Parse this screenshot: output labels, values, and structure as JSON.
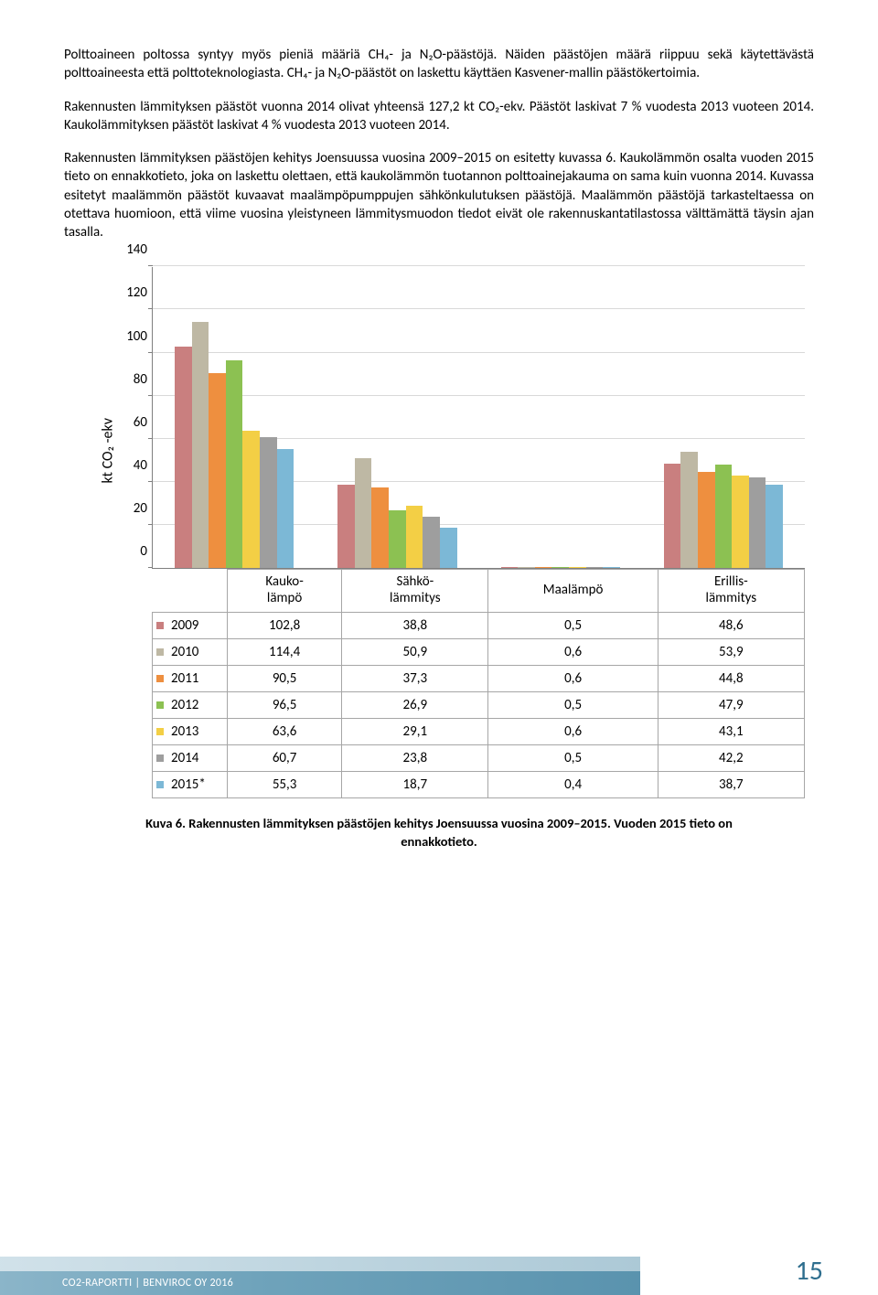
{
  "paragraphs": {
    "p1": "Polttoaineen poltossa syntyy myös pieniä määriä CH₄- ja N₂O-päästöjä. Näiden päästöjen määrä riippuu sekä käytettävästä polttoaineesta että polttoteknologiasta. CH₄- ja N₂O-päästöt on laskettu käyttäen Kasvener-mallin päästökertoimia.",
    "p2": "Rakennusten lämmityksen päästöt vuonna 2014 olivat yhteensä 127,2 kt CO₂-ekv. Päästöt laskivat 7 % vuodesta 2013 vuoteen 2014. Kaukolämmityksen päästöt laskivat 4 % vuodesta 2013 vuoteen 2014.",
    "p3": "Rakennusten lämmityksen päästöjen kehitys Joensuussa vuosina 2009–2015 on esitetty kuvassa 6. Kaukolämmön osalta vuoden 2015 tieto on ennakkotieto, joka on laskettu olettaen, että kaukolämmön tuotannon polttoainejakauma on sama kuin vuonna 2014. Kuvassa esitetyt maalämmön päästöt kuvaavat maalämpöpumppujen sähkönkulutuksen päästöjä. Maalämmön päästöjä tarkasteltaessa on otettava huomioon, että viime vuosina yleistyneen lämmitysmuodon tiedot eivät ole rakennuskantatilastossa välttämättä täysin ajan tasalla."
  },
  "chart": {
    "ylabel": "kt CO₂ -ekv",
    "ymax": 140,
    "ytick_step": 20,
    "yticks": [
      0,
      20,
      40,
      60,
      80,
      100,
      120,
      140
    ],
    "categories": [
      "Kauko-lämpö",
      "Sähkö-lämmitys",
      "Maalämpö",
      "Erillis-lämmitys"
    ],
    "series": [
      {
        "label": "2009",
        "color": "#c97f7f",
        "values": [
          102.8,
          38.8,
          0.5,
          48.6
        ],
        "display": [
          "102,8",
          "38,8",
          "0,5",
          "48,6"
        ]
      },
      {
        "label": "2010",
        "color": "#beb8a4",
        "values": [
          114.4,
          50.9,
          0.6,
          53.9
        ],
        "display": [
          "114,4",
          "50,9",
          "0,6",
          "53,9"
        ]
      },
      {
        "label": "2011",
        "color": "#ee8f3f",
        "values": [
          90.5,
          37.3,
          0.6,
          44.8
        ],
        "display": [
          "90,5",
          "37,3",
          "0,6",
          "44,8"
        ]
      },
      {
        "label": "2012",
        "color": "#8cc152",
        "values": [
          96.5,
          26.9,
          0.5,
          47.9
        ],
        "display": [
          "96,5",
          "26,9",
          "0,5",
          "47,9"
        ]
      },
      {
        "label": "2013",
        "color": "#f3cf45",
        "values": [
          63.6,
          29.1,
          0.6,
          43.1
        ],
        "display": [
          "63,6",
          "29,1",
          "0,6",
          "43,1"
        ]
      },
      {
        "label": "2014",
        "color": "#9e9e9e",
        "values": [
          60.7,
          23.8,
          0.5,
          42.2
        ],
        "display": [
          "60,7",
          "23,8",
          "0,5",
          "42,2"
        ]
      },
      {
        "label": "2015*",
        "color": "#7cb8d6",
        "values": [
          55.3,
          18.7,
          0.4,
          38.7
        ],
        "display": [
          "55,3",
          "18,7",
          "0,4",
          "38,7"
        ]
      }
    ],
    "grid_color": "#d9d9d9",
    "axis_color": "#7f7f7f",
    "table_border": "#a6a6a6"
  },
  "caption_line1": "Kuva 6. Rakennusten lämmityksen päästöjen kehitys Joensuussa vuosina 2009–2015. Vuoden 2015 tieto on",
  "caption_line2": "ennakkotieto.",
  "footer_text": "CO2-RAPORTTI | BENVIROC OY 2016",
  "page_number": "15"
}
